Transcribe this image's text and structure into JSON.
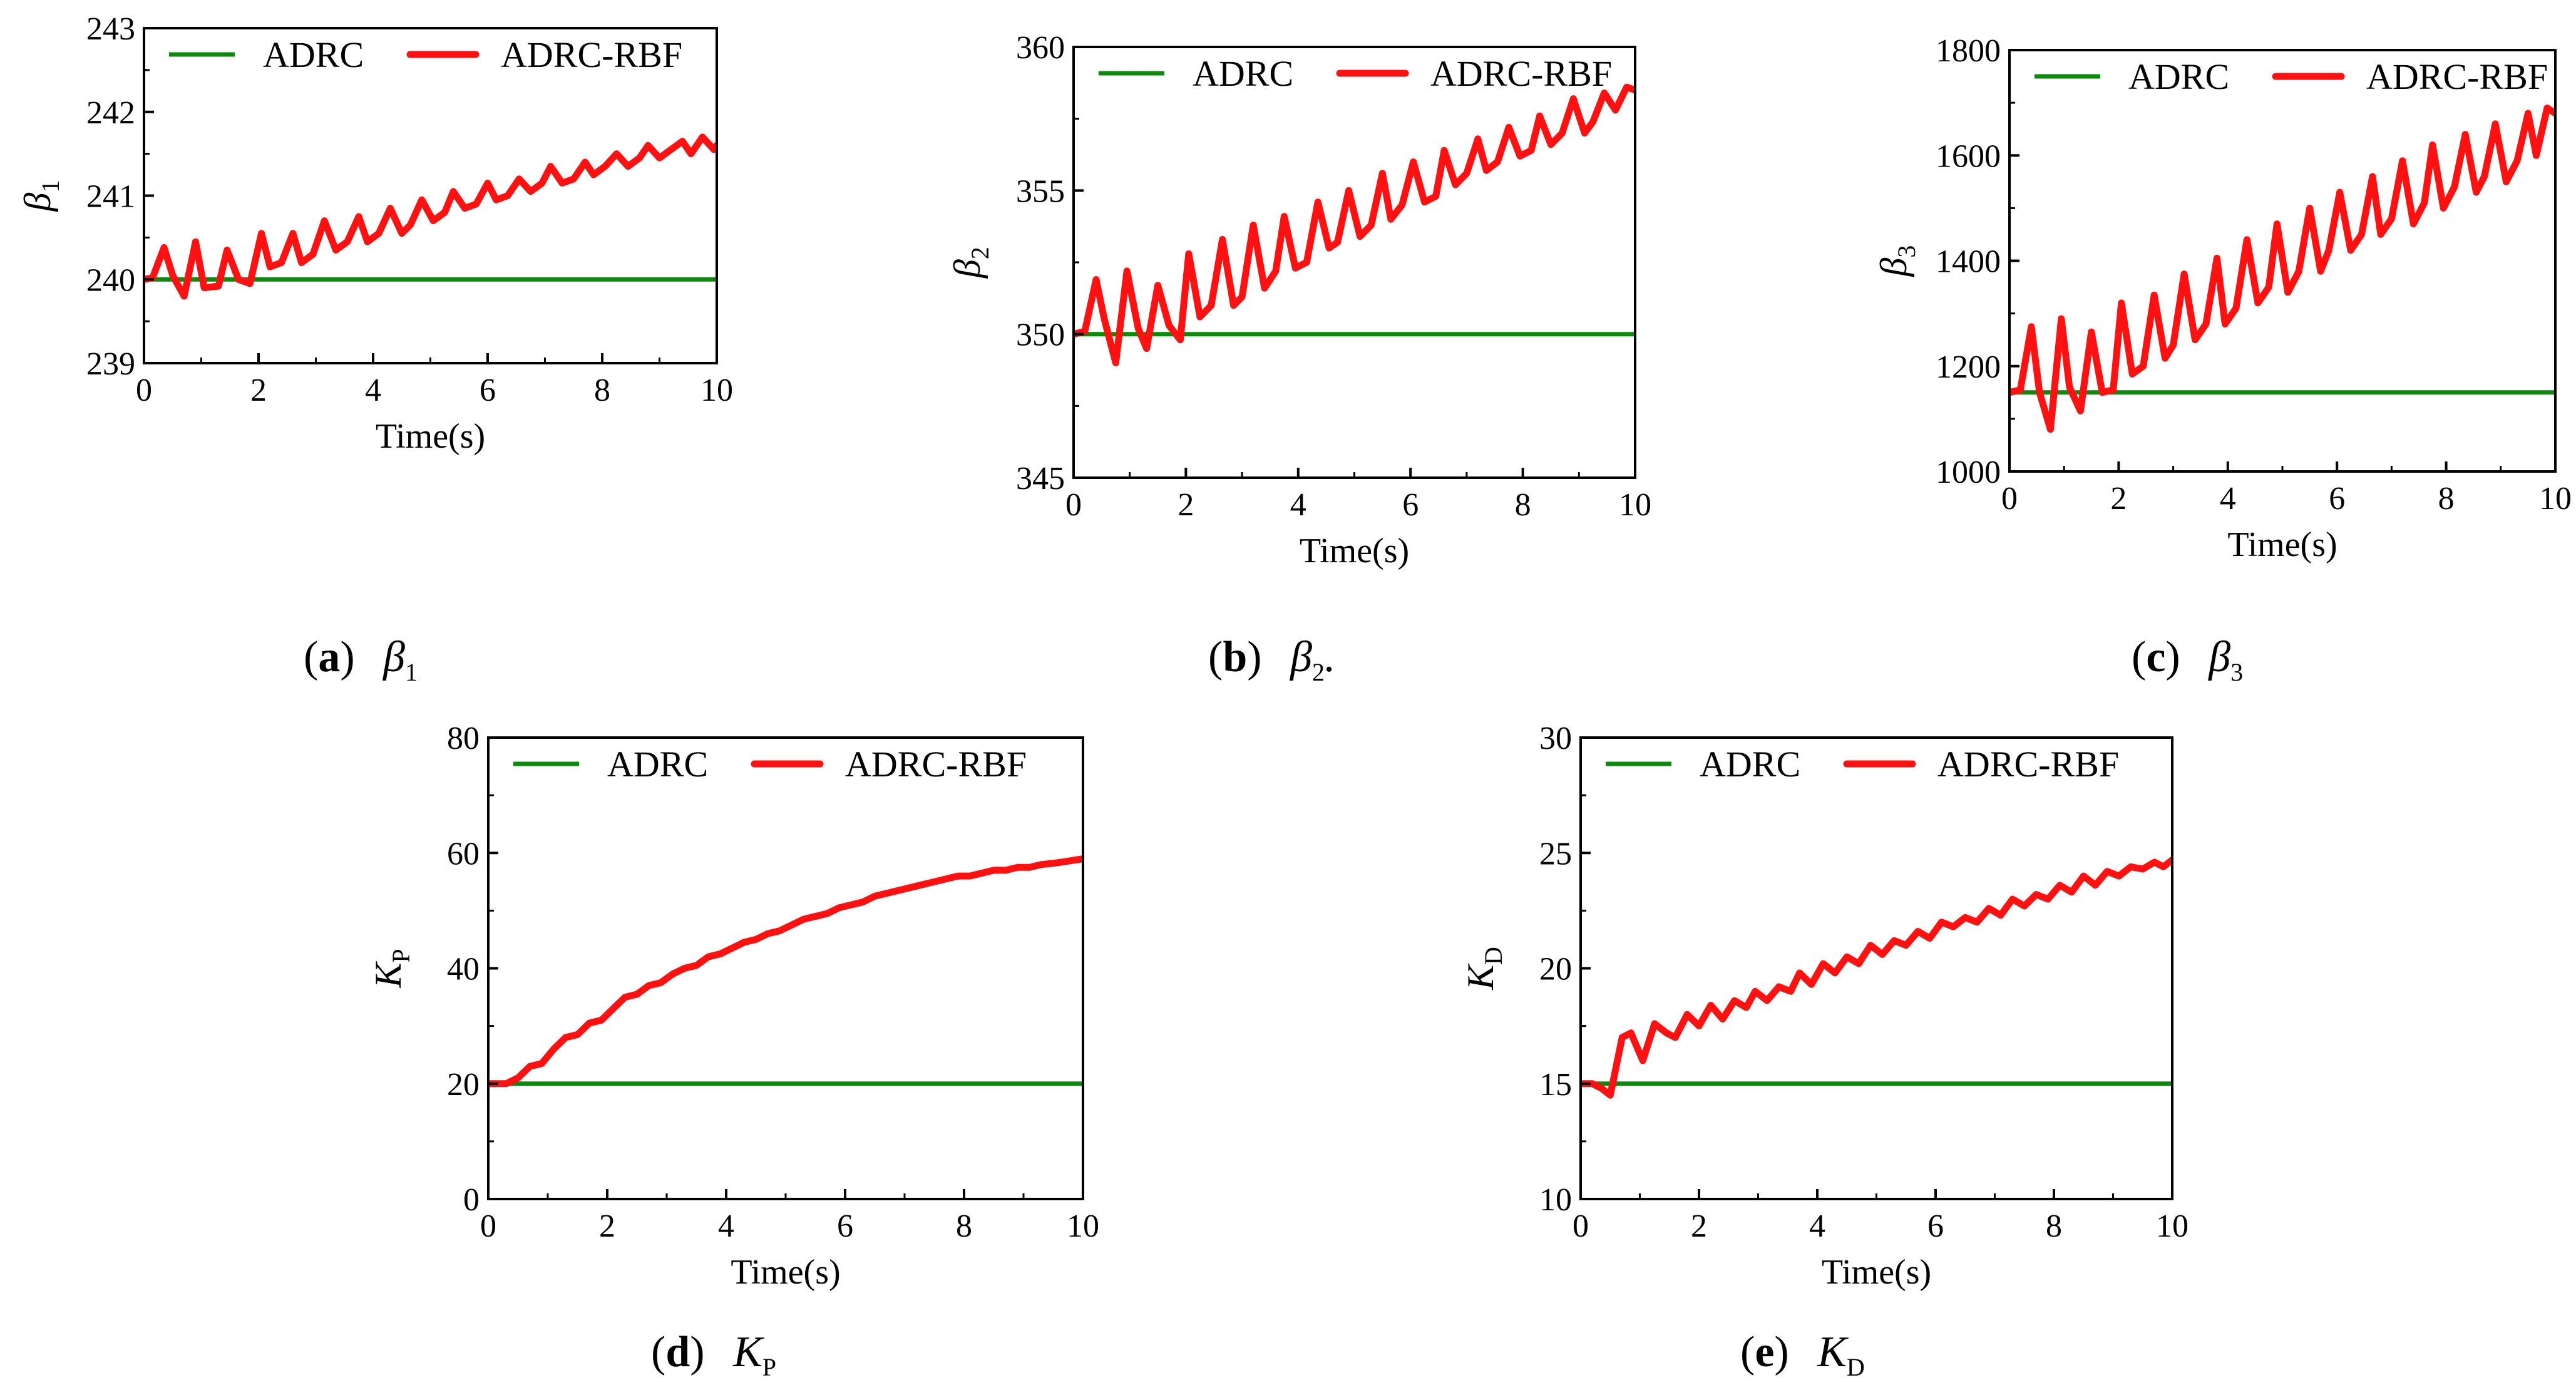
{
  "colors": {
    "adrc": "#0b8a0b",
    "adrc_rbf": "#ff1111",
    "axis": "#000000"
  },
  "chart_data": [
    {
      "id": "a",
      "type": "line",
      "caption": {
        "letter": "a",
        "symbol": "β",
        "sub": "1",
        "suffix": ""
      },
      "ylabel": {
        "symbol": "β",
        "sub": "1"
      },
      "xlabel": "Time(s)",
      "xlim": [
        0,
        10
      ],
      "ylim": [
        239,
        243
      ],
      "xticks": [
        0,
        2,
        4,
        6,
        8,
        10
      ],
      "yticks": [
        239,
        240,
        241,
        242,
        243
      ],
      "legend": [
        "ADRC",
        "ADRC-RBF"
      ],
      "series": [
        {
          "name": "ADRC",
          "x": [
            0,
            10
          ],
          "y": [
            240,
            240
          ]
        },
        {
          "name": "ADRC-RBF",
          "x": [
            0,
            0.15,
            0.35,
            0.5,
            0.7,
            0.9,
            1.05,
            1.3,
            1.45,
            1.65,
            1.85,
            2.05,
            2.2,
            2.4,
            2.6,
            2.75,
            2.95,
            3.15,
            3.35,
            3.55,
            3.75,
            3.9,
            4.1,
            4.3,
            4.5,
            4.65,
            4.85,
            5.05,
            5.25,
            5.4,
            5.6,
            5.8,
            6.0,
            6.15,
            6.35,
            6.55,
            6.75,
            6.95,
            7.1,
            7.3,
            7.5,
            7.7,
            7.85,
            8.05,
            8.25,
            8.45,
            8.65,
            8.8,
            9.0,
            9.2,
            9.4,
            9.55,
            9.75,
            9.95,
            10
          ],
          "y": [
            240,
            240.02,
            240.38,
            240.05,
            239.8,
            240.45,
            239.9,
            239.92,
            240.35,
            240.0,
            239.95,
            240.55,
            240.15,
            240.2,
            240.55,
            240.2,
            240.3,
            240.7,
            240.35,
            240.45,
            240.75,
            240.45,
            240.55,
            240.85,
            240.55,
            240.65,
            240.95,
            240.7,
            240.8,
            241.05,
            240.85,
            240.9,
            241.15,
            240.95,
            241.0,
            241.2,
            241.05,
            241.15,
            241.35,
            241.15,
            241.2,
            241.4,
            241.25,
            241.35,
            241.5,
            241.35,
            241.45,
            241.6,
            241.45,
            241.55,
            241.65,
            241.5,
            241.7,
            241.55,
            241.6
          ]
        }
      ]
    },
    {
      "id": "b",
      "type": "line",
      "caption": {
        "letter": "b",
        "symbol": "β",
        "sub": "2",
        "suffix": "."
      },
      "ylabel": {
        "symbol": "β",
        "sub": "2"
      },
      "xlabel": "Time(s)",
      "xlim": [
        0,
        10
      ],
      "ylim": [
        345,
        360
      ],
      "xticks": [
        0,
        2,
        4,
        6,
        8,
        10
      ],
      "yticks": [
        345,
        350,
        355,
        360
      ],
      "legend": [
        "ADRC",
        "ADRC-RBF"
      ],
      "series": [
        {
          "name": "ADRC",
          "x": [
            0,
            10
          ],
          "y": [
            350,
            350
          ]
        },
        {
          "name": "ADRC-RBF",
          "x": [
            0,
            0.2,
            0.4,
            0.55,
            0.75,
            0.95,
            1.15,
            1.3,
            1.5,
            1.7,
            1.9,
            2.05,
            2.25,
            2.45,
            2.65,
            2.85,
            3.0,
            3.2,
            3.4,
            3.6,
            3.75,
            3.95,
            4.15,
            4.35,
            4.55,
            4.7,
            4.9,
            5.1,
            5.3,
            5.5,
            5.65,
            5.85,
            6.05,
            6.25,
            6.45,
            6.6,
            6.8,
            7.0,
            7.2,
            7.35,
            7.55,
            7.75,
            7.95,
            8.15,
            8.3,
            8.5,
            8.7,
            8.9,
            9.1,
            9.25,
            9.45,
            9.65,
            9.85,
            10
          ],
          "y": [
            350,
            350.1,
            351.9,
            350.5,
            349,
            352.2,
            350.2,
            349.5,
            351.7,
            350.3,
            349.8,
            352.8,
            350.6,
            351,
            353.3,
            351,
            351.3,
            353.8,
            351.6,
            352.2,
            354.1,
            352.3,
            352.5,
            354.6,
            353,
            353.2,
            355,
            353.4,
            353.8,
            355.6,
            354,
            354.5,
            356,
            354.6,
            354.8,
            356.4,
            355.2,
            355.6,
            356.8,
            355.7,
            356,
            357.2,
            356.2,
            356.4,
            357.6,
            356.6,
            357,
            358.2,
            357,
            357.4,
            358.4,
            357.8,
            358.6,
            358.5
          ]
        }
      ]
    },
    {
      "id": "c",
      "type": "line",
      "caption": {
        "letter": "c",
        "symbol": "β",
        "sub": "3",
        "suffix": ""
      },
      "ylabel": {
        "symbol": "β",
        "sub": "3"
      },
      "xlabel": "Time(s)",
      "xlim": [
        0,
        10
      ],
      "ylim": [
        1000,
        1800
      ],
      "xticks": [
        0,
        2,
        4,
        6,
        8,
        10
      ],
      "yticks": [
        1000,
        1200,
        1400,
        1600,
        1800
      ],
      "legend": [
        "ADRC",
        "ADRC-RBF"
      ],
      "series": [
        {
          "name": "ADRC",
          "x": [
            0,
            10
          ],
          "y": [
            1150,
            1150
          ]
        },
        {
          "name": "ADRC-RBF",
          "x": [
            0,
            0.2,
            0.4,
            0.55,
            0.75,
            0.95,
            1.1,
            1.3,
            1.5,
            1.7,
            1.9,
            2.05,
            2.25,
            2.45,
            2.65,
            2.85,
            3.0,
            3.2,
            3.4,
            3.6,
            3.8,
            3.95,
            4.15,
            4.35,
            4.55,
            4.75,
            4.9,
            5.1,
            5.3,
            5.5,
            5.7,
            5.85,
            6.05,
            6.25,
            6.45,
            6.65,
            6.8,
            7.0,
            7.2,
            7.4,
            7.6,
            7.75,
            7.95,
            8.15,
            8.35,
            8.55,
            8.7,
            8.9,
            9.1,
            9.3,
            9.5,
            9.65,
            9.85,
            10
          ],
          "y": [
            1150,
            1155,
            1275,
            1150,
            1080,
            1290,
            1160,
            1115,
            1265,
            1150,
            1155,
            1320,
            1185,
            1200,
            1335,
            1215,
            1240,
            1375,
            1250,
            1280,
            1405,
            1280,
            1310,
            1440,
            1320,
            1350,
            1470,
            1340,
            1380,
            1500,
            1380,
            1420,
            1530,
            1420,
            1450,
            1560,
            1450,
            1480,
            1590,
            1470,
            1510,
            1620,
            1500,
            1540,
            1640,
            1530,
            1560,
            1660,
            1550,
            1590,
            1680,
            1600,
            1690,
            1680
          ]
        }
      ]
    },
    {
      "id": "d",
      "type": "line",
      "caption": {
        "letter": "d",
        "symbol": "K",
        "sub": "P",
        "suffix": ""
      },
      "ylabel": {
        "symbol": "K",
        "sub": "P"
      },
      "xlabel": "Time(s)",
      "xlim": [
        0,
        10
      ],
      "ylim": [
        0,
        80
      ],
      "xticks": [
        0,
        2,
        4,
        6,
        8,
        10
      ],
      "yticks": [
        0,
        20,
        40,
        60,
        80
      ],
      "legend": [
        "ADRC",
        "ADRC-RBF"
      ],
      "series": [
        {
          "name": "ADRC",
          "x": [
            0,
            10
          ],
          "y": [
            20,
            20
          ]
        },
        {
          "name": "ADRC-RBF",
          "x": [
            0,
            0.3,
            0.5,
            0.7,
            0.9,
            1.1,
            1.3,
            1.5,
            1.7,
            1.9,
            2.1,
            2.3,
            2.5,
            2.7,
            2.9,
            3.1,
            3.3,
            3.5,
            3.7,
            3.9,
            4.1,
            4.3,
            4.5,
            4.7,
            4.9,
            5.1,
            5.3,
            5.5,
            5.7,
            5.9,
            6.1,
            6.3,
            6.5,
            6.7,
            6.9,
            7.1,
            7.3,
            7.5,
            7.7,
            7.9,
            8.1,
            8.3,
            8.5,
            8.7,
            8.9,
            9.1,
            9.3,
            9.5,
            9.7,
            10
          ],
          "y": [
            20,
            20,
            21,
            23,
            23.5,
            26,
            28,
            28.5,
            30.5,
            31,
            33,
            35,
            35.5,
            37,
            37.5,
            39,
            40,
            40.5,
            42,
            42.5,
            43.5,
            44.5,
            45,
            46,
            46.5,
            47.5,
            48.5,
            49,
            49.5,
            50.5,
            51,
            51.5,
            52.5,
            53,
            53.5,
            54,
            54.5,
            55,
            55.5,
            56,
            56,
            56.5,
            57,
            57,
            57.5,
            57.5,
            58,
            58.2,
            58.5,
            59
          ]
        }
      ]
    },
    {
      "id": "e",
      "type": "line",
      "caption": {
        "letter": "e",
        "symbol": "K",
        "sub": "D",
        "suffix": ""
      },
      "ylabel": {
        "symbol": "K",
        "sub": "D"
      },
      "xlabel": "Time(s)",
      "xlim": [
        0,
        10
      ],
      "ylim": [
        10,
        30
      ],
      "xticks": [
        0,
        2,
        4,
        6,
        8,
        10
      ],
      "yticks": [
        10,
        15,
        20,
        25,
        30
      ],
      "legend": [
        "ADRC",
        "ADRC-RBF"
      ],
      "series": [
        {
          "name": "ADRC",
          "x": [
            0,
            10
          ],
          "y": [
            15,
            15
          ]
        },
        {
          "name": "ADRC-RBF",
          "x": [
            0,
            0.2,
            0.35,
            0.5,
            0.7,
            0.85,
            1.05,
            1.25,
            1.45,
            1.6,
            1.8,
            2.0,
            2.2,
            2.4,
            2.6,
            2.8,
            2.95,
            3.15,
            3.35,
            3.55,
            3.7,
            3.9,
            4.1,
            4.3,
            4.5,
            4.7,
            4.9,
            5.1,
            5.3,
            5.5,
            5.7,
            5.9,
            6.1,
            6.3,
            6.5,
            6.7,
            6.9,
            7.1,
            7.3,
            7.5,
            7.7,
            7.9,
            8.1,
            8.3,
            8.5,
            8.7,
            8.9,
            9.1,
            9.3,
            9.5,
            9.7,
            9.85,
            10
          ],
          "y": [
            15,
            15,
            14.8,
            14.5,
            17,
            17.2,
            16,
            17.6,
            17.2,
            17,
            18,
            17.5,
            18.4,
            17.8,
            18.6,
            18.3,
            19,
            18.6,
            19.2,
            19,
            19.8,
            19.3,
            20.2,
            19.8,
            20.5,
            20.2,
            21,
            20.6,
            21.2,
            21,
            21.6,
            21.3,
            22,
            21.8,
            22.2,
            22,
            22.6,
            22.3,
            23,
            22.7,
            23.2,
            23,
            23.6,
            23.3,
            24,
            23.6,
            24.2,
            24,
            24.4,
            24.3,
            24.6,
            24.4,
            24.7
          ]
        }
      ]
    }
  ]
}
